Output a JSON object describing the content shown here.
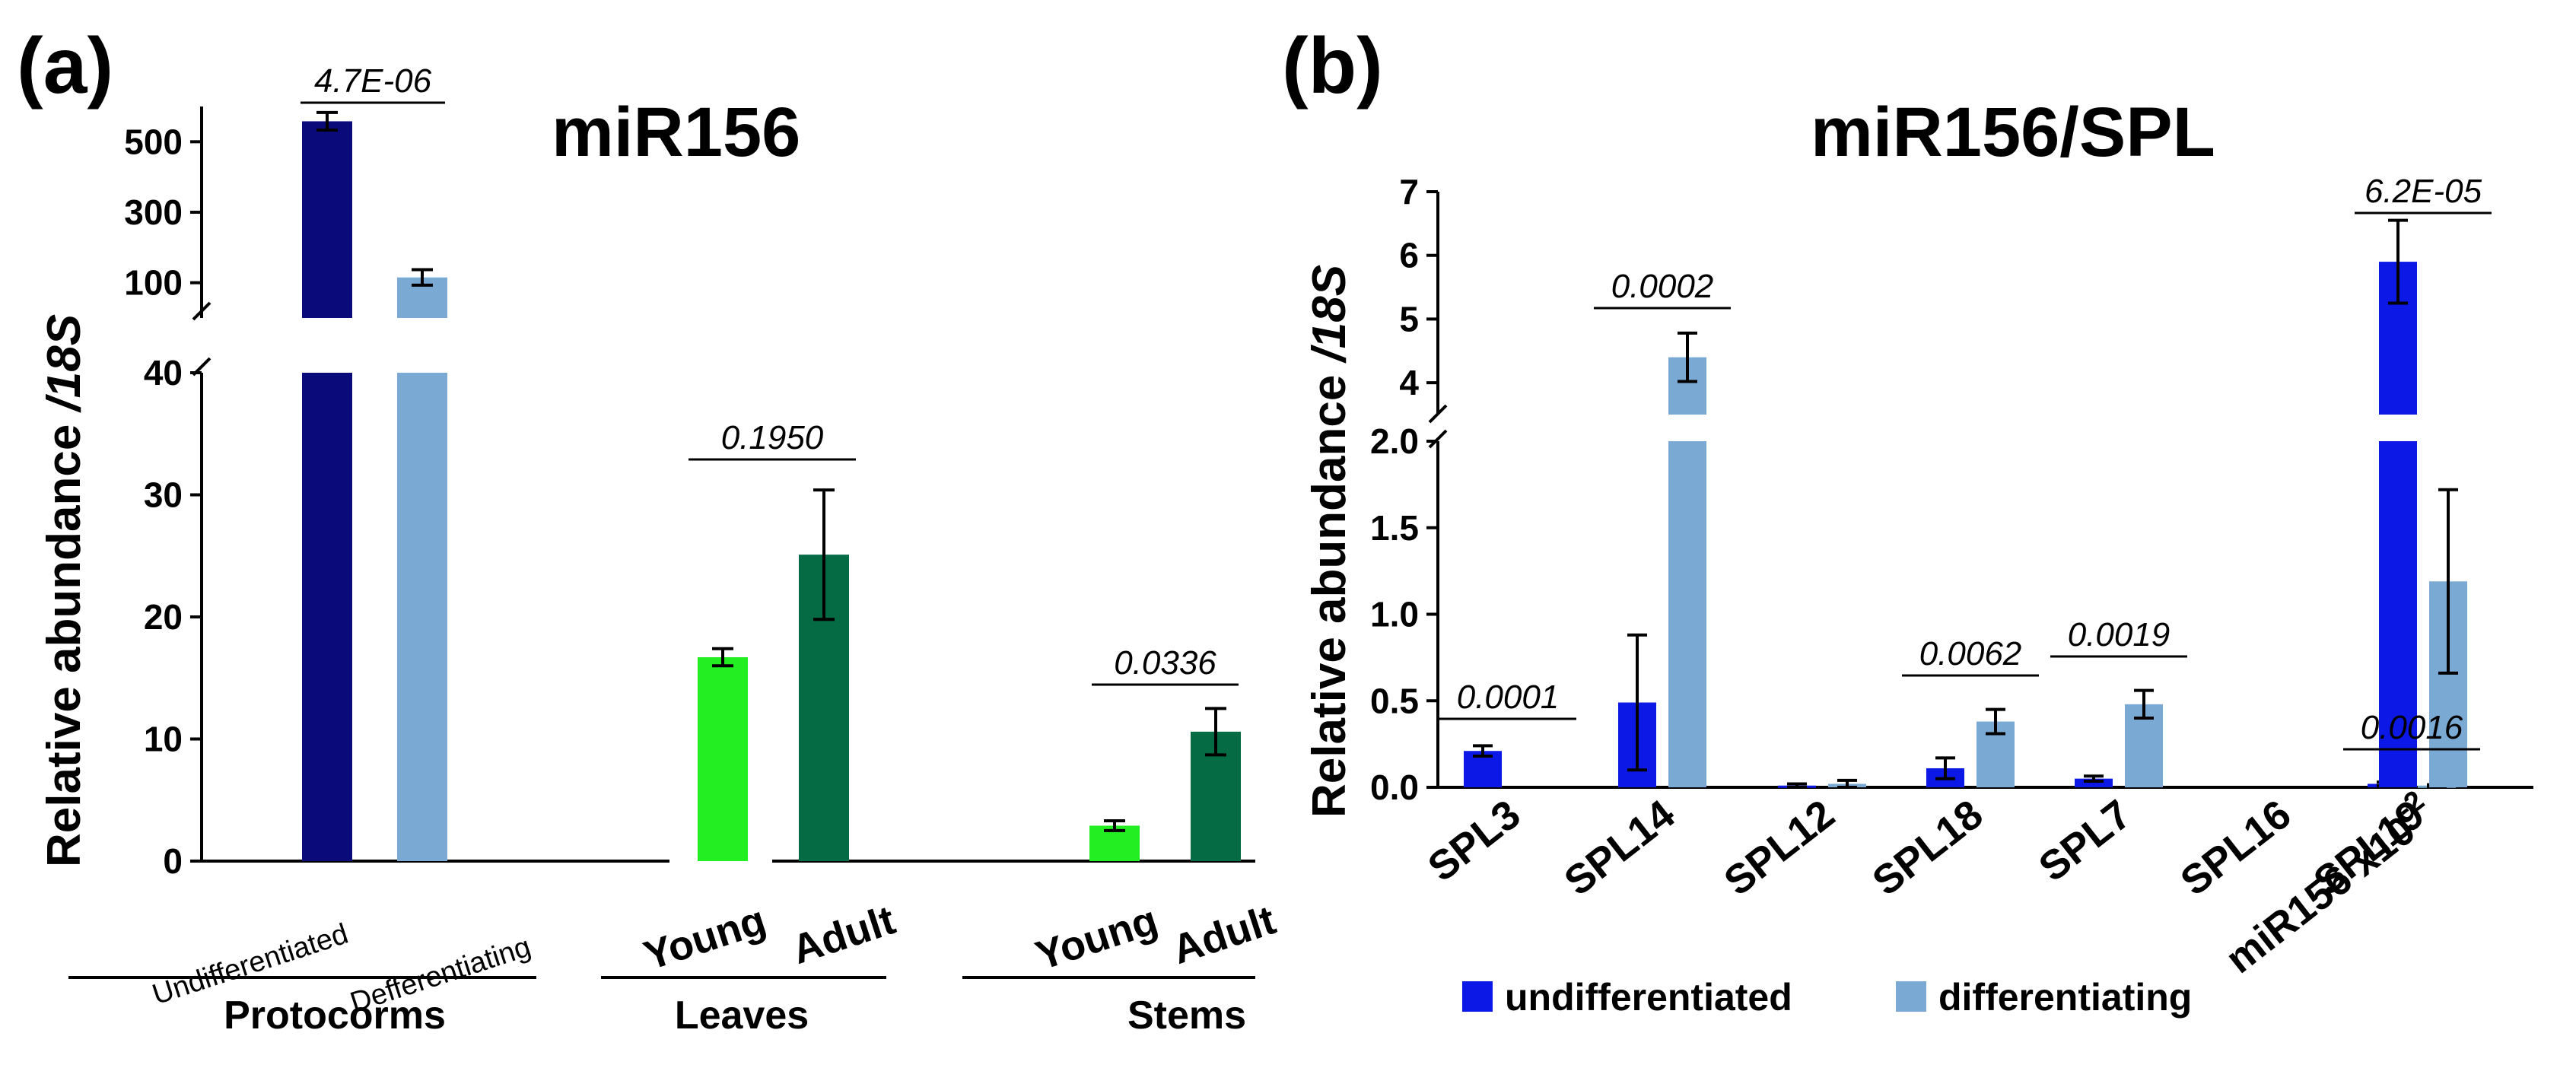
{
  "chart_data": [
    {
      "panel": "(a)",
      "type": "bar",
      "title": "miR156",
      "ylabel": "Relative abundance",
      "ylabel_suffix": "/18S",
      "y_axis_break": {
        "lower_range": [
          0,
          40
        ],
        "upper_range": [
          0,
          600
        ],
        "upper_ticks": [
          100,
          300,
          500
        ],
        "lower_ticks": [
          0,
          10,
          20,
          30,
          40
        ]
      },
      "groups": [
        {
          "name": "Protocorms",
          "categories": [
            {
              "label": "Undifferentiated",
              "value": 558,
              "error": 25,
              "color": "#0a0a7a",
              "err_color": "#f0a868"
            },
            {
              "label": "Defferentiating",
              "value": 115,
              "error": 22,
              "color": "#7aaad4",
              "err_color": "#f0a868"
            }
          ]
        },
        {
          "name": "Leaves",
          "categories": [
            {
              "label": "Young",
              "value": 16.7,
              "error": 0.7,
              "color": "#22ee22",
              "err_color": "#000000"
            },
            {
              "label": "Adult",
              "value": 25.1,
              "error": 5.3,
              "color": "#056b45",
              "err_color": "#000000"
            }
          ]
        },
        {
          "name": "Stems",
          "categories": [
            {
              "label": "Young",
              "value": 2.9,
              "error": 0.4,
              "color": "#22ee22",
              "err_color": "#000000"
            },
            {
              "label": "Adult",
              "value": 10.6,
              "error": 1.9,
              "color": "#056b45",
              "err_color": "#000000"
            }
          ]
        }
      ],
      "annotations": [
        {
          "text": "4.7E-06",
          "group": "Protocorms"
        },
        {
          "text": "0.1950",
          "group": "Leaves"
        },
        {
          "text": "0.0336",
          "group": "Stems"
        }
      ]
    },
    {
      "panel": "(b)",
      "type": "bar",
      "title": "miR156/SPL",
      "ylabel": "Relative abundance",
      "ylabel_suffix": "/18S",
      "y_axis_break": {
        "lower_range": [
          0,
          2.0
        ],
        "upper_range": [
          3.5,
          7
        ],
        "lower_ticks": [
          "0.0",
          "0.5",
          "1.0",
          "1.5",
          "2.0"
        ],
        "upper_ticks": [
          "4",
          "5",
          "6",
          "7"
        ]
      },
      "categories": [
        "SPL3",
        "SPL14",
        "SPL12",
        "SPL18",
        "SPL7",
        "SPL16",
        "SPL19",
        "miR156 x10"
      ],
      "exponent_label": "-2",
      "series": [
        {
          "name": "undifferentiated",
          "color": "#0b18e6",
          "values": [
            0.21,
            0.49,
            0.01,
            0.11,
            0.05,
            0.0,
            0.02,
            5.9
          ],
          "errors": [
            0.03,
            0.39,
            0.01,
            0.06,
            0.015,
            0.0,
            0.01,
            0.65
          ]
        },
        {
          "name": "differentiating",
          "color": "#7aaad4",
          "values": [
            0.0,
            4.4,
            0.02,
            0.38,
            0.48,
            0.0,
            0.01,
            1.19
          ],
          "errors": [
            0.0,
            0.38,
            0.02,
            0.07,
            0.08,
            0.0,
            0.005,
            0.53
          ]
        }
      ],
      "annotations": [
        {
          "text": "0.0001",
          "category": "SPL3"
        },
        {
          "text": "0.0002",
          "category": "SPL14"
        },
        {
          "text": "0.0062",
          "category": "SPL18"
        },
        {
          "text": "0.0019",
          "category": "SPL7"
        },
        {
          "text": "0.0016",
          "category": "SPL19"
        },
        {
          "text": "6.2E-05",
          "category": "miR156 x10"
        }
      ],
      "legend": {
        "position": "bottom",
        "entries": [
          "undifferentiated",
          "differentiating"
        ]
      }
    }
  ]
}
